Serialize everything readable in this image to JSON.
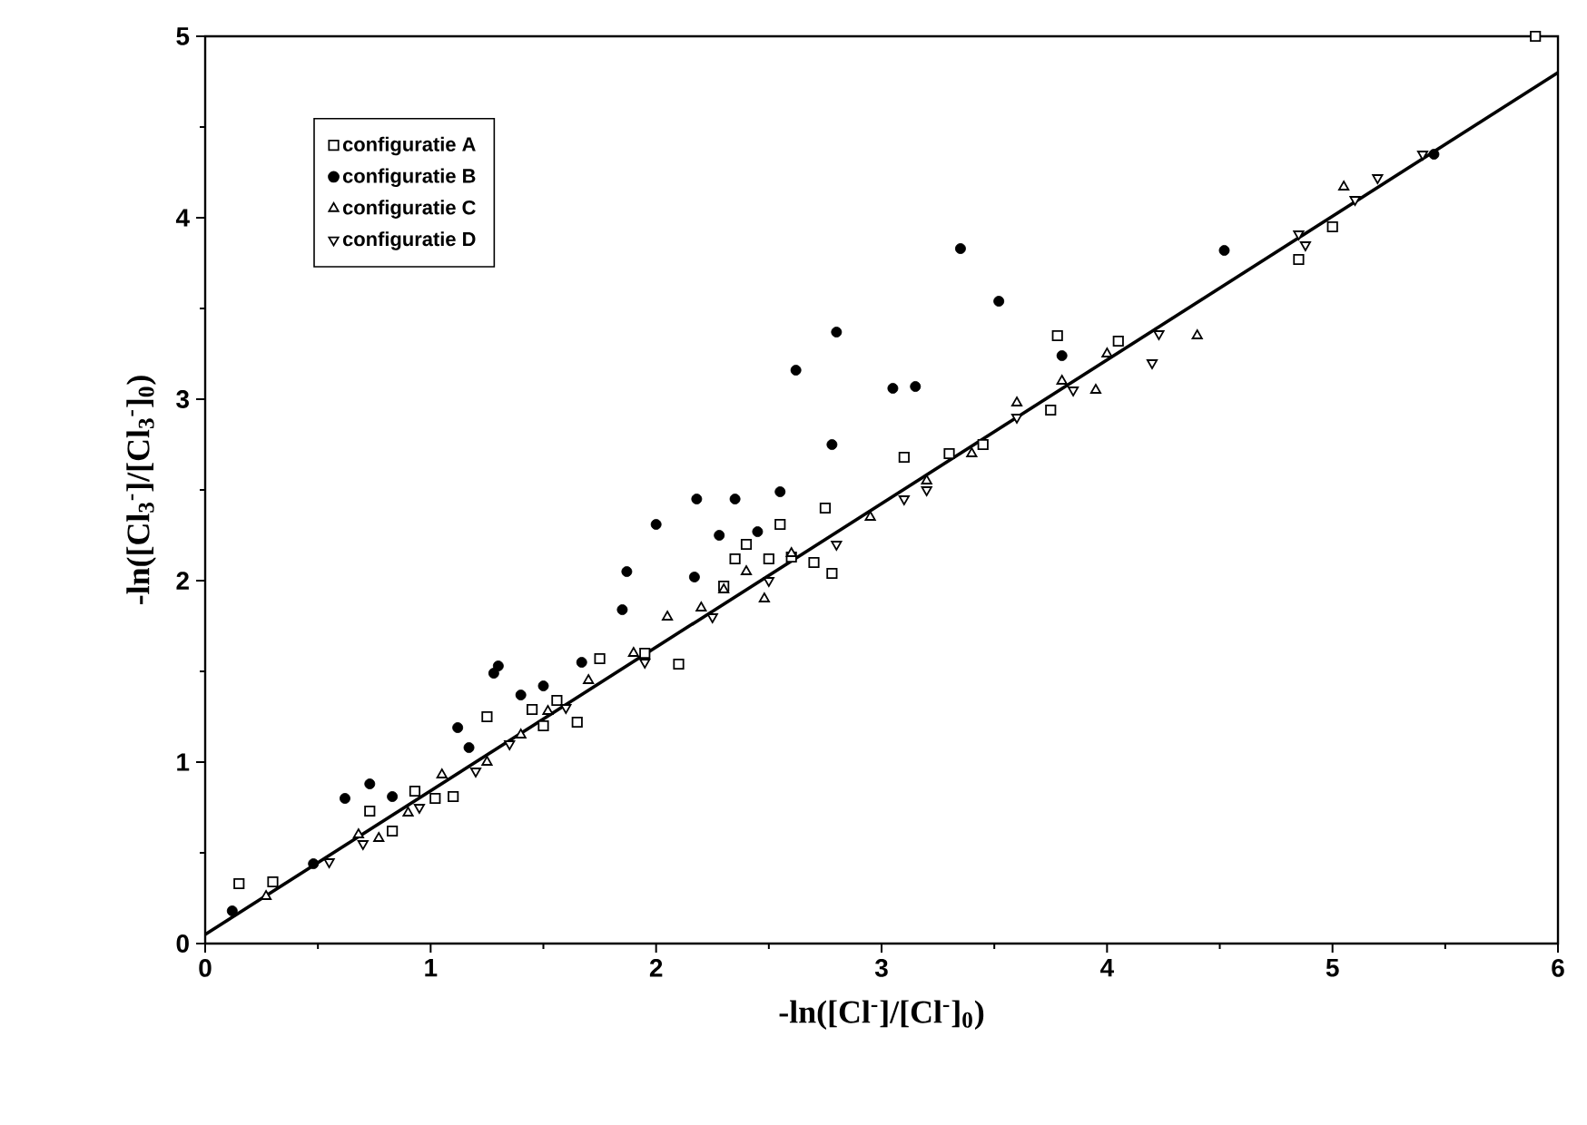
{
  "chart_data": {
    "type": "scatter",
    "xlabel": "-ln([Cl$^{-}$]/[Cl$^{-}$]$_{0}$)",
    "ylabel": "-ln([Cl$_{3}$$^{-}$]/[Cl$_{3}$$^{-}$]$_{0}$)",
    "xlim": [
      0,
      6
    ],
    "ylim": [
      0,
      5
    ],
    "xticks": [
      0,
      1,
      2,
      3,
      4,
      5,
      6
    ],
    "yticks": [
      0,
      1,
      2,
      3,
      4,
      5
    ],
    "legend": "top left",
    "series": [
      {
        "name": "configuratie A",
        "color": "#000000",
        "marker": "square",
        "x": [
          0.15,
          0.3,
          0.73,
          0.83,
          0.93,
          1.02,
          1.1,
          1.25,
          1.45,
          1.5,
          1.56,
          1.65,
          1.75,
          1.95,
          2.1,
          2.3,
          2.35,
          2.4,
          2.5,
          2.55,
          2.6,
          2.7,
          2.75,
          2.78,
          3.1,
          3.3,
          3.45,
          3.75,
          3.78,
          4.05,
          4.85,
          5.0,
          5.9
        ],
        "values": [
          0.33,
          0.34,
          0.73,
          0.62,
          0.84,
          0.8,
          0.81,
          1.25,
          1.29,
          1.2,
          1.34,
          1.22,
          1.57,
          1.6,
          1.54,
          1.97,
          2.12,
          2.2,
          2.12,
          2.31,
          2.13,
          2.1,
          2.4,
          2.04,
          2.68,
          2.7,
          2.75,
          2.94,
          3.35,
          3.32,
          3.77,
          3.95,
          5.0
        ]
      },
      {
        "name": "configuratie B",
        "color": "#000000",
        "marker": "circle",
        "x": [
          0.12,
          0.48,
          0.62,
          0.73,
          0.83,
          1.12,
          1.17,
          1.28,
          1.3,
          1.4,
          1.5,
          1.67,
          1.85,
          1.87,
          2.0,
          2.17,
          2.18,
          2.28,
          2.35,
          2.45,
          2.55,
          2.62,
          2.78,
          2.8,
          3.05,
          3.15,
          3.35,
          3.52,
          3.8,
          4.52,
          5.45
        ],
        "values": [
          0.18,
          0.44,
          0.8,
          0.88,
          0.81,
          1.19,
          1.08,
          1.49,
          1.53,
          1.37,
          1.42,
          1.55,
          1.84,
          2.05,
          2.31,
          2.02,
          2.45,
          2.25,
          2.45,
          2.27,
          2.49,
          3.16,
          2.75,
          3.37,
          3.06,
          3.07,
          3.83,
          3.54,
          3.24,
          3.82,
          4.35
        ]
      },
      {
        "name": "configuratie C",
        "color": "#000000",
        "marker": "triangle",
        "x": [
          0.27,
          0.68,
          0.77,
          0.9,
          1.05,
          1.25,
          1.4,
          1.52,
          1.7,
          1.9,
          2.05,
          2.2,
          2.3,
          2.4,
          2.48,
          2.6,
          2.95,
          3.2,
          3.4,
          3.6,
          3.8,
          3.95,
          4.0,
          4.4,
          5.05
        ],
        "values": [
          0.26,
          0.6,
          0.58,
          0.72,
          0.93,
          1.0,
          1.15,
          1.28,
          1.45,
          1.6,
          1.8,
          1.85,
          1.95,
          2.05,
          1.9,
          2.15,
          2.35,
          2.55,
          2.7,
          2.98,
          3.1,
          3.05,
          3.25,
          3.35,
          4.17
        ]
      },
      {
        "name": "configuratie D",
        "color": "#000000",
        "marker": "triangle-down",
        "x": [
          0.55,
          0.7,
          0.95,
          1.2,
          1.35,
          1.6,
          1.95,
          2.25,
          2.5,
          2.8,
          3.1,
          3.2,
          3.6,
          3.85,
          4.2,
          4.23,
          4.85,
          4.88,
          5.1,
          5.2,
          5.4
        ],
        "values": [
          0.45,
          0.55,
          0.75,
          0.95,
          1.1,
          1.3,
          1.55,
          1.8,
          2.0,
          2.2,
          2.45,
          2.5,
          2.9,
          3.05,
          3.2,
          3.36,
          3.91,
          3.85,
          4.1,
          4.22,
          4.35
        ]
      },
      {
        "type": "line",
        "color": "#000000",
        "x": [
          0,
          6
        ],
        "values": [
          0.05,
          4.8
        ]
      }
    ]
  }
}
